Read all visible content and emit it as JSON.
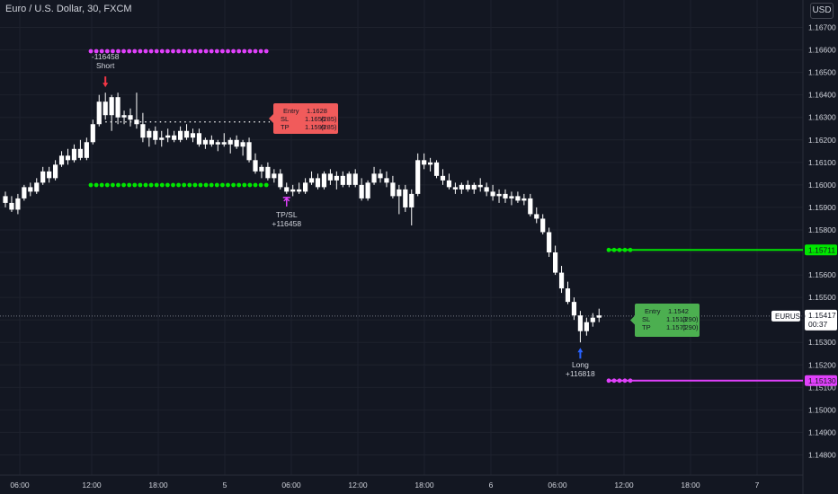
{
  "header": {
    "title": "Euro / U.S. Dollar, 30, FXCM",
    "currency_button": "USD"
  },
  "colors": {
    "background": "#131722",
    "candle_up": "#ffffff",
    "candle_down": "#ffffff",
    "magenta": "#e040fb",
    "green": "#00e600",
    "red_label": "#f15b5b",
    "green_label": "#4caf50",
    "text": "#d1d4dc",
    "grid": "#1e222d"
  },
  "chart_data": {
    "type": "candlestick",
    "symbol": "EURUSD",
    "ylim": [
      1.1475,
      1.1675
    ],
    "y_ticks": [
      "1.16700",
      "1.16600",
      "1.16500",
      "1.16400",
      "1.16300",
      "1.16200",
      "1.16100",
      "1.16000",
      "1.15900",
      "1.15800",
      "1.15700",
      "1.15600",
      "1.15500",
      "1.15400",
      "1.15300",
      "1.15200",
      "1.15100",
      "1.15000",
      "1.14900",
      "1.14800"
    ],
    "x_ticks": [
      "06:00",
      "12:00",
      "18:00",
      "5",
      "06:00",
      "12:00",
      "18:00",
      "6",
      "06:00",
      "12:00",
      "18:00",
      "7"
    ],
    "last_price": {
      "label": "EURUSD",
      "value": "1.15417",
      "countdown": "00:37",
      "price": 1.15417
    },
    "levels": [
      {
        "price": 1.15711,
        "label": "1.15711",
        "color": "#00e600"
      },
      {
        "price": 1.1513,
        "label": "1.15130",
        "color": "#e040fb"
      }
    ],
    "candles": [
      [
        1.1595,
        1.1597,
        1.159,
        1.1592
      ],
      [
        1.1592,
        1.1595,
        1.1588,
        1.1589
      ],
      [
        1.1589,
        1.1596,
        1.1587,
        1.1594
      ],
      [
        1.1594,
        1.16,
        1.1593,
        1.1599
      ],
      [
        1.1599,
        1.1601,
        1.1595,
        1.1597
      ],
      [
        1.1597,
        1.1603,
        1.1596,
        1.1601
      ],
      [
        1.1601,
        1.1608,
        1.16,
        1.1606
      ],
      [
        1.1606,
        1.1608,
        1.1601,
        1.1603
      ],
      [
        1.1603,
        1.1611,
        1.1602,
        1.1609
      ],
      [
        1.1609,
        1.1615,
        1.1608,
        1.1613
      ],
      [
        1.1613,
        1.1616,
        1.1609,
        1.1611
      ],
      [
        1.1611,
        1.1618,
        1.161,
        1.1616
      ],
      [
        1.1616,
        1.162,
        1.1611,
        1.1612
      ],
      [
        1.1612,
        1.1621,
        1.1611,
        1.1619
      ],
      [
        1.1619,
        1.1629,
        1.1618,
        1.1627
      ],
      [
        1.1627,
        1.164,
        1.1626,
        1.1637
      ],
      [
        1.1637,
        1.1641,
        1.1629,
        1.1631
      ],
      [
        1.1631,
        1.164,
        1.1624,
        1.1639
      ],
      [
        1.1639,
        1.1641,
        1.1627,
        1.163
      ],
      [
        1.163,
        1.1633,
        1.1627,
        1.1631
      ],
      [
        1.1631,
        1.1634,
        1.1626,
        1.1629
      ],
      [
        1.1629,
        1.1641,
        1.1625,
        1.1627
      ],
      [
        1.1627,
        1.1632,
        1.1619,
        1.1621
      ],
      [
        1.1621,
        1.1625,
        1.1617,
        1.1624
      ],
      [
        1.1624,
        1.1626,
        1.1618,
        1.162
      ],
      [
        1.162,
        1.1624,
        1.1617,
        1.1621
      ],
      [
        1.1621,
        1.1625,
        1.1619,
        1.1622
      ],
      [
        1.1622,
        1.1624,
        1.1619,
        1.162
      ],
      [
        1.162,
        1.1626,
        1.1619,
        1.1624
      ],
      [
        1.1624,
        1.1627,
        1.162,
        1.1621
      ],
      [
        1.1621,
        1.1625,
        1.1619,
        1.1623
      ],
      [
        1.1623,
        1.1625,
        1.1617,
        1.1618
      ],
      [
        1.1618,
        1.1621,
        1.1616,
        1.162
      ],
      [
        1.162,
        1.1622,
        1.1617,
        1.1618
      ],
      [
        1.1618,
        1.162,
        1.1615,
        1.1619
      ],
      [
        1.1619,
        1.1623,
        1.1617,
        1.1618
      ],
      [
        1.1618,
        1.1621,
        1.1614,
        1.162
      ],
      [
        1.162,
        1.1622,
        1.1616,
        1.1617
      ],
      [
        1.1617,
        1.162,
        1.1613,
        1.1619
      ],
      [
        1.1619,
        1.1621,
        1.161,
        1.1611
      ],
      [
        1.1611,
        1.1614,
        1.1605,
        1.1606
      ],
      [
        1.1606,
        1.1609,
        1.1603,
        1.1608
      ],
      [
        1.1608,
        1.161,
        1.1602,
        1.1603
      ],
      [
        1.1603,
        1.1607,
        1.1601,
        1.1605
      ],
      [
        1.1605,
        1.1607,
        1.1598,
        1.1599
      ],
      [
        1.1599,
        1.1601,
        1.1596,
        1.1597
      ],
      [
        1.1597,
        1.16,
        1.1595,
        1.1598
      ],
      [
        1.1598,
        1.1601,
        1.1596,
        1.1597
      ],
      [
        1.1597,
        1.1603,
        1.1596,
        1.1601
      ],
      [
        1.1601,
        1.1606,
        1.16,
        1.1603
      ],
      [
        1.1603,
        1.1605,
        1.1598,
        1.1599
      ],
      [
        1.1599,
        1.1606,
        1.1598,
        1.1605
      ],
      [
        1.1605,
        1.1607,
        1.16,
        1.1602
      ],
      [
        1.1602,
        1.1606,
        1.1598,
        1.1604
      ],
      [
        1.1604,
        1.1606,
        1.1599,
        1.16
      ],
      [
        1.16,
        1.1606,
        1.1599,
        1.1605
      ],
      [
        1.1605,
        1.1607,
        1.1599,
        1.16
      ],
      [
        1.16,
        1.1603,
        1.1593,
        1.1594
      ],
      [
        1.1594,
        1.1602,
        1.1593,
        1.1601
      ],
      [
        1.1601,
        1.1608,
        1.16,
        1.1605
      ],
      [
        1.1605,
        1.1607,
        1.1601,
        1.1603
      ],
      [
        1.1603,
        1.1606,
        1.1599,
        1.1601
      ],
      [
        1.1601,
        1.1604,
        1.1594,
        1.1595
      ],
      [
        1.1595,
        1.16,
        1.1587,
        1.1598
      ],
      [
        1.1598,
        1.16,
        1.1588,
        1.159
      ],
      [
        1.159,
        1.1598,
        1.1582,
        1.1596
      ],
      [
        1.1596,
        1.1614,
        1.1595,
        1.1611
      ],
      [
        1.1611,
        1.1614,
        1.1607,
        1.1609
      ],
      [
        1.1609,
        1.1612,
        1.1606,
        1.161
      ],
      [
        1.161,
        1.1611,
        1.1603,
        1.1604
      ],
      [
        1.1604,
        1.1607,
        1.16,
        1.1602
      ],
      [
        1.1602,
        1.1605,
        1.1598,
        1.1599
      ],
      [
        1.1599,
        1.1601,
        1.1596,
        1.1598
      ],
      [
        1.1598,
        1.1601,
        1.1596,
        1.16
      ],
      [
        1.16,
        1.1602,
        1.1597,
        1.1598
      ],
      [
        1.1598,
        1.1601,
        1.1596,
        1.16
      ],
      [
        1.16,
        1.1603,
        1.1597,
        1.1599
      ],
      [
        1.1599,
        1.1601,
        1.1595,
        1.1597
      ],
      [
        1.1597,
        1.16,
        1.1593,
        1.1595
      ],
      [
        1.1595,
        1.1598,
        1.1592,
        1.1596
      ],
      [
        1.1596,
        1.1598,
        1.1592,
        1.1594
      ],
      [
        1.1594,
        1.1597,
        1.1591,
        1.1595
      ],
      [
        1.1595,
        1.1597,
        1.1592,
        1.1593
      ],
      [
        1.1593,
        1.1596,
        1.1591,
        1.1594
      ],
      [
        1.1594,
        1.1596,
        1.1586,
        1.1587
      ],
      [
        1.1587,
        1.159,
        1.1583,
        1.1585
      ],
      [
        1.1585,
        1.1587,
        1.1578,
        1.1579
      ],
      [
        1.1579,
        1.1581,
        1.1568,
        1.157
      ],
      [
        1.157,
        1.1573,
        1.156,
        1.1561
      ],
      [
        1.1561,
        1.1564,
        1.1552,
        1.1554
      ],
      [
        1.1554,
        1.1557,
        1.1547,
        1.1548
      ],
      [
        1.1548,
        1.155,
        1.154,
        1.1542
      ],
      [
        1.1542,
        1.1544,
        1.153,
        1.1535
      ],
      [
        1.1535,
        1.1541,
        1.1533,
        1.1539
      ],
      [
        1.1539,
        1.1543,
        1.1537,
        1.1541
      ],
      [
        1.1541,
        1.1545,
        1.1539,
        1.1542
      ]
    ],
    "signals": [
      {
        "type": "short",
        "label_top": "-116458",
        "label_bottom": "Short",
        "index": 16
      },
      {
        "type": "exit",
        "label_top": "TP/SL",
        "label_bottom": "+116458",
        "index": 45
      },
      {
        "type": "long",
        "label_top": "Long",
        "label_bottom": "+116818",
        "index": 92
      }
    ],
    "short_box": {
      "rows": [
        [
          "Entry",
          "1.1628",
          ""
        ],
        [
          "SL",
          "1.1656",
          "(285)"
        ],
        [
          "TP",
          "1.1599",
          "(285)"
        ]
      ],
      "entry": 1.1628,
      "sl": 1.1656,
      "tp": 1.1599
    },
    "long_box": {
      "rows": [
        [
          "Entry",
          "1.1542",
          ""
        ],
        [
          "SL",
          "1.1513",
          "(290)"
        ],
        [
          "TP",
          "1.1571",
          "(290)"
        ]
      ],
      "entry": 1.1542,
      "sl": 1.1513,
      "tp": 1.1571
    }
  }
}
